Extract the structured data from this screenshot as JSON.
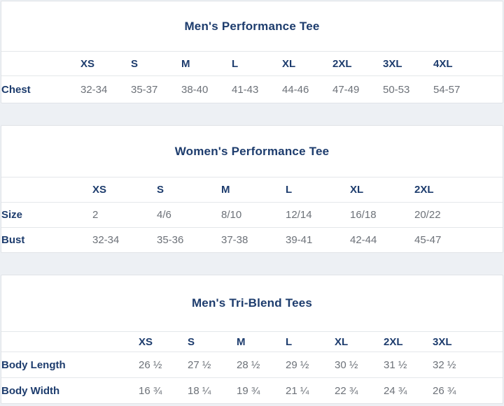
{
  "theme": {
    "page_background": "#edf0f4",
    "card_background": "#ffffff",
    "card_border": "#e0e3e7",
    "row_divider": "#e4e7ea",
    "heading_color": "#1d3c6d",
    "value_color": "#6c7178"
  },
  "size_charts": [
    {
      "title": "Men's Performance Tee",
      "sizes": [
        "XS",
        "S",
        "M",
        "L",
        "XL",
        "2XL",
        "3XL",
        "4XL"
      ],
      "rows": [
        {
          "label": "Chest",
          "values": [
            "32-34",
            "35-37",
            "38-40",
            "41-43",
            "44-46",
            "47-49",
            "50-53",
            "54-57"
          ]
        }
      ]
    },
    {
      "title": "Women's Performance Tee",
      "sizes": [
        "XS",
        "S",
        "M",
        "L",
        "XL",
        "2XL"
      ],
      "rows": [
        {
          "label": "Size",
          "values": [
            "2",
            "4/6",
            "8/10",
            "12/14",
            "16/18",
            "20/22"
          ]
        },
        {
          "label": "Bust",
          "values": [
            "32-34",
            "35-36",
            "37-38",
            "39-41",
            "42-44",
            "45-47"
          ]
        }
      ]
    },
    {
      "title": "Men's Tri-Blend Tees",
      "sizes": [
        "XS",
        "S",
        "M",
        "L",
        "XL",
        "2XL",
        "3XL"
      ],
      "rows": [
        {
          "label": "Body Length",
          "values": [
            "26 ½",
            "27 ½",
            "28 ½",
            "29 ½",
            "30 ½",
            "31 ½",
            "32 ½"
          ]
        },
        {
          "label": "Body Width",
          "values": [
            "16 ¾",
            "18 ¼",
            "19 ¾",
            "21 ¼",
            "22 ¾",
            "24 ¾",
            "26 ¾"
          ]
        }
      ]
    }
  ]
}
